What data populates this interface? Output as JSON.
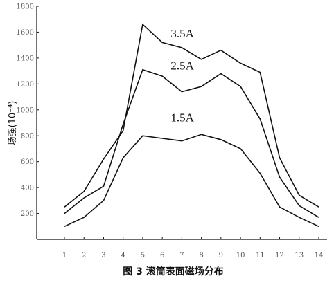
{
  "chart_data": {
    "type": "line",
    "caption": "图 3   滚筒表面磁场分布",
    "ylabel": "场强(10⁻⁴)",
    "xlim": [
      1,
      14
    ],
    "ylim": [
      0,
      1800
    ],
    "x": [
      1,
      2,
      3,
      4,
      5,
      6,
      7,
      8,
      9,
      10,
      11,
      12,
      13,
      14
    ],
    "x_tick_labels": [
      "1",
      "2",
      "3",
      "4",
      "5",
      "6",
      "7",
      "8",
      "9",
      "10",
      "11",
      "12",
      "13",
      "14"
    ],
    "y_ticks": [
      0,
      200,
      400,
      600,
      800,
      1000,
      1200,
      1400,
      1600,
      1800
    ],
    "y_tick_labels": [
      "",
      "200",
      "400",
      "600",
      "800",
      "1000",
      "1200",
      "1400",
      "1600",
      "1800"
    ],
    "series": [
      {
        "name": "3.5A",
        "values": [
          250,
          370,
          620,
          840,
          1660,
          1520,
          1480,
          1390,
          1460,
          1360,
          1290,
          630,
          340,
          250
        ]
      },
      {
        "name": "2.5A",
        "values": [
          200,
          320,
          410,
          890,
          1310,
          1260,
          1140,
          1180,
          1280,
          1180,
          930,
          480,
          260,
          170
        ]
      },
      {
        "name": "1.5A",
        "values": [
          100,
          170,
          300,
          630,
          800,
          780,
          760,
          810,
          770,
          700,
          510,
          250,
          170,
          100
        ]
      }
    ],
    "grid": false,
    "legend": "inline labels"
  }
}
